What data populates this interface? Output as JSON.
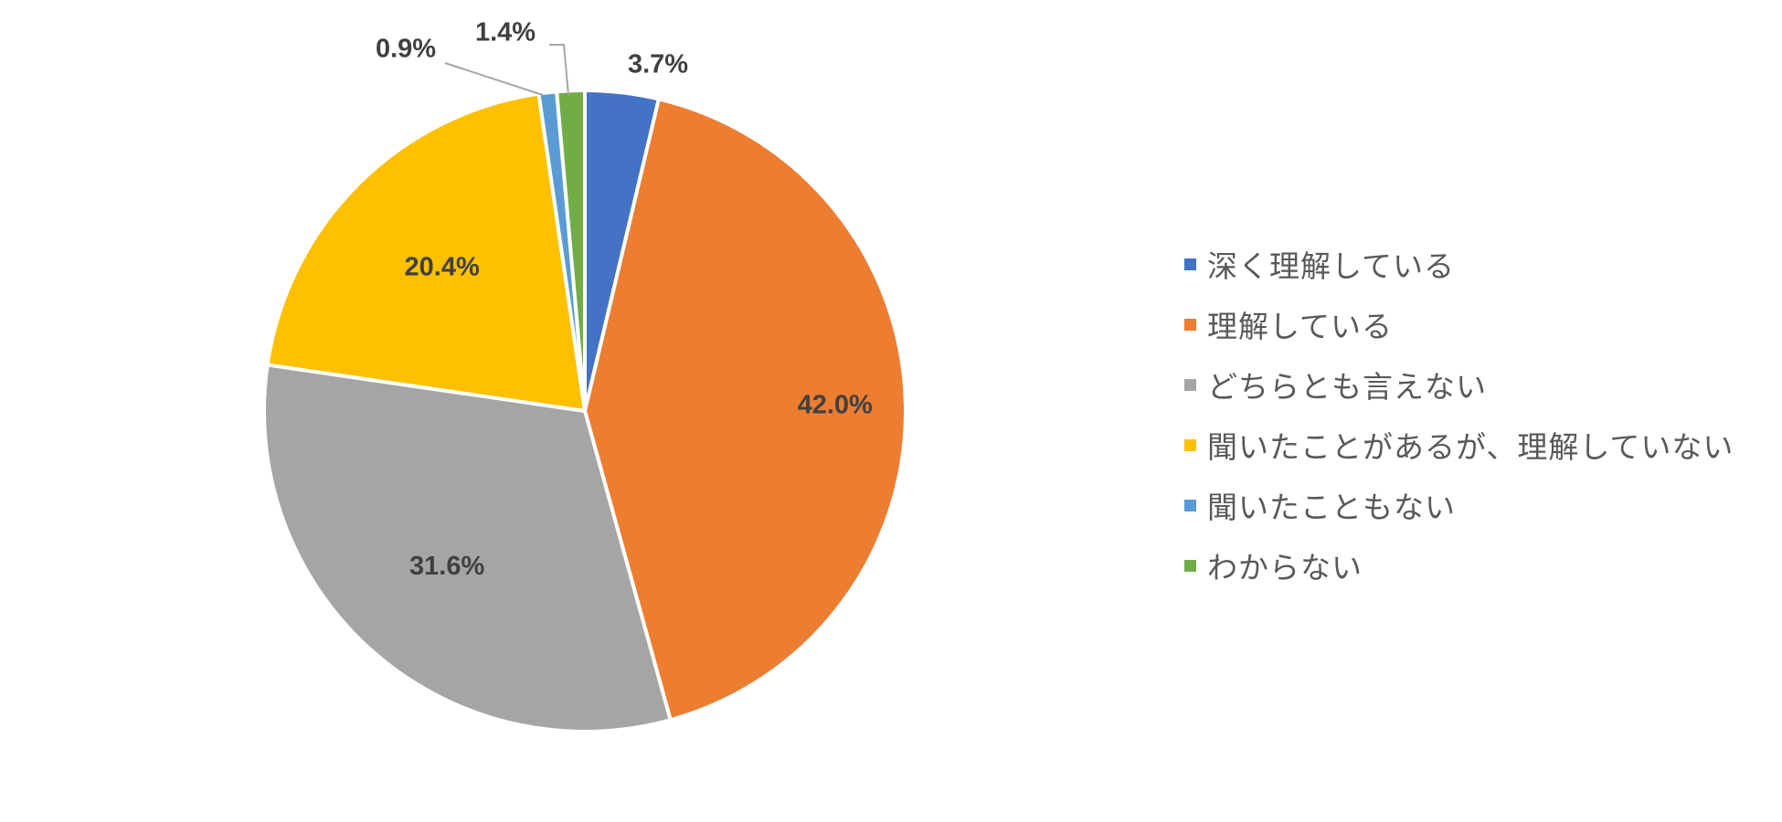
{
  "chart_data": {
    "type": "pie",
    "categories": [
      "深く理解している",
      "理解している",
      "どちらとも言えない",
      "聞いたことがあるが、理解していない",
      "聞いたこともない",
      "わからない"
    ],
    "values": [
      3.7,
      42.0,
      31.6,
      20.4,
      0.9,
      1.4
    ],
    "value_labels": [
      "3.7%",
      "42.0%",
      "31.6%",
      "20.4%",
      "0.9%",
      "1.4%"
    ],
    "colors": [
      "#4472C4",
      "#ED7D31",
      "#A5A5A5",
      "#FFC000",
      "#5B9BD5",
      "#70AD47"
    ],
    "start_angle": "12 o'clock",
    "direction": "clockwise",
    "legend_position": "right",
    "title": ""
  }
}
